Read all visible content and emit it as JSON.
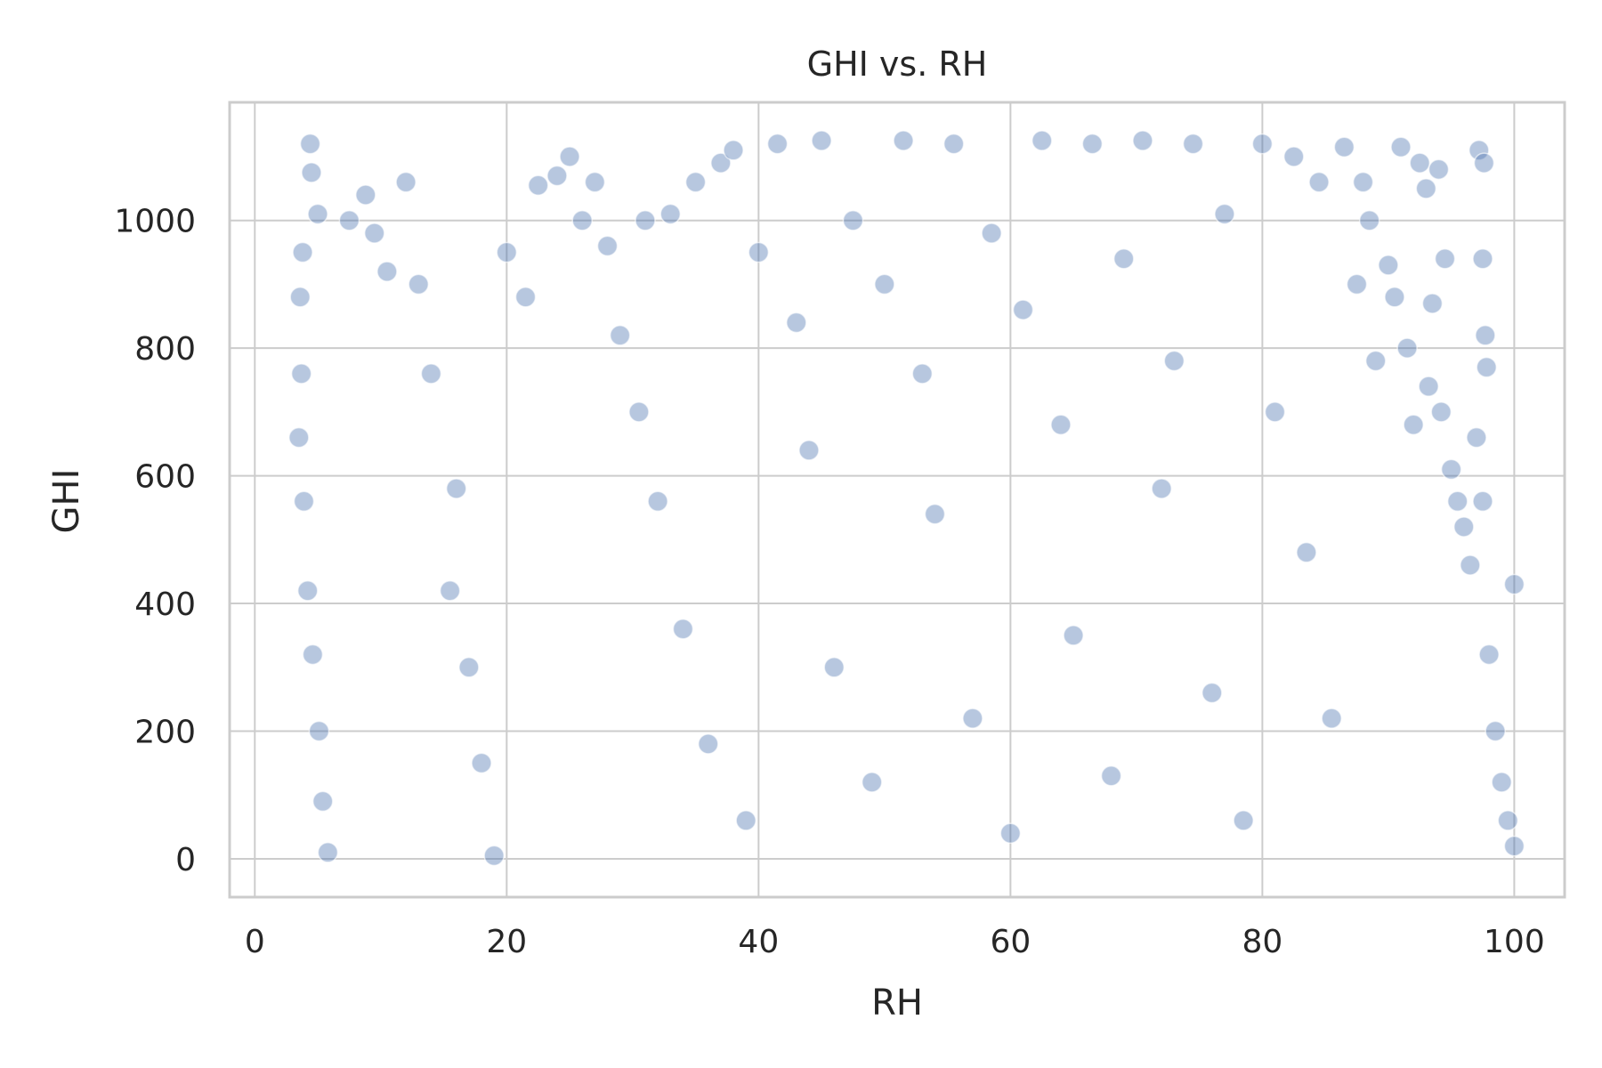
{
  "chart_data": {
    "type": "scatter",
    "title": "GHI vs. RH",
    "xlabel": "RH",
    "ylabel": "GHI",
    "xlim": [
      -2,
      104
    ],
    "ylim": [
      -60,
      1185
    ],
    "x_ticks": [
      0,
      20,
      40,
      60,
      80,
      100
    ],
    "y_ticks": [
      0,
      200,
      400,
      600,
      800,
      1000
    ],
    "grid": true,
    "marker_color": "#4c72b0",
    "marker_alpha": 0.4,
    "marker_edge_color": "#ffffff",
    "points": [
      {
        "x": 4.4,
        "y": 1120
      },
      {
        "x": 4.5,
        "y": 1075
      },
      {
        "x": 5.0,
        "y": 1010
      },
      {
        "x": 3.8,
        "y": 950
      },
      {
        "x": 3.6,
        "y": 880
      },
      {
        "x": 3.7,
        "y": 760
      },
      {
        "x": 3.5,
        "y": 660
      },
      {
        "x": 3.9,
        "y": 560
      },
      {
        "x": 4.2,
        "y": 420
      },
      {
        "x": 4.6,
        "y": 320
      },
      {
        "x": 5.1,
        "y": 200
      },
      {
        "x": 5.4,
        "y": 90
      },
      {
        "x": 5.8,
        "y": 10
      },
      {
        "x": 7.5,
        "y": 1000
      },
      {
        "x": 8.8,
        "y": 1040
      },
      {
        "x": 9.5,
        "y": 980
      },
      {
        "x": 10.5,
        "y": 920
      },
      {
        "x": 12.0,
        "y": 1060
      },
      {
        "x": 13.0,
        "y": 900
      },
      {
        "x": 14.0,
        "y": 760
      },
      {
        "x": 15.5,
        "y": 420
      },
      {
        "x": 16.0,
        "y": 580
      },
      {
        "x": 17.0,
        "y": 300
      },
      {
        "x": 18.0,
        "y": 150
      },
      {
        "x": 19.0,
        "y": 5
      },
      {
        "x": 20.0,
        "y": 950
      },
      {
        "x": 21.5,
        "y": 880
      },
      {
        "x": 22.5,
        "y": 1055
      },
      {
        "x": 24.0,
        "y": 1070
      },
      {
        "x": 25.0,
        "y": 1100
      },
      {
        "x": 26.0,
        "y": 1000
      },
      {
        "x": 27.0,
        "y": 1060
      },
      {
        "x": 28.0,
        "y": 960
      },
      {
        "x": 29.0,
        "y": 820
      },
      {
        "x": 30.5,
        "y": 700
      },
      {
        "x": 31.0,
        "y": 1000
      },
      {
        "x": 32.0,
        "y": 560
      },
      {
        "x": 33.0,
        "y": 1010
      },
      {
        "x": 34.0,
        "y": 360
      },
      {
        "x": 35.0,
        "y": 1060
      },
      {
        "x": 36.0,
        "y": 180
      },
      {
        "x": 37.0,
        "y": 1090
      },
      {
        "x": 38.0,
        "y": 1110
      },
      {
        "x": 39.0,
        "y": 60
      },
      {
        "x": 40.0,
        "y": 950
      },
      {
        "x": 41.5,
        "y": 1120
      },
      {
        "x": 43.0,
        "y": 840
      },
      {
        "x": 44.0,
        "y": 640
      },
      {
        "x": 45.0,
        "y": 1125
      },
      {
        "x": 46.0,
        "y": 300
      },
      {
        "x": 47.5,
        "y": 1000
      },
      {
        "x": 49.0,
        "y": 120
      },
      {
        "x": 50.0,
        "y": 900
      },
      {
        "x": 51.5,
        "y": 1125
      },
      {
        "x": 53.0,
        "y": 760
      },
      {
        "x": 54.0,
        "y": 540
      },
      {
        "x": 55.5,
        "y": 1120
      },
      {
        "x": 57.0,
        "y": 220
      },
      {
        "x": 58.5,
        "y": 980
      },
      {
        "x": 60.0,
        "y": 40
      },
      {
        "x": 61.0,
        "y": 860
      },
      {
        "x": 62.5,
        "y": 1125
      },
      {
        "x": 64.0,
        "y": 680
      },
      {
        "x": 65.0,
        "y": 350
      },
      {
        "x": 66.5,
        "y": 1120
      },
      {
        "x": 68.0,
        "y": 130
      },
      {
        "x": 69.0,
        "y": 940
      },
      {
        "x": 70.5,
        "y": 1125
      },
      {
        "x": 72.0,
        "y": 580
      },
      {
        "x": 73.0,
        "y": 780
      },
      {
        "x": 74.5,
        "y": 1120
      },
      {
        "x": 76.0,
        "y": 260
      },
      {
        "x": 77.0,
        "y": 1010
      },
      {
        "x": 78.5,
        "y": 60
      },
      {
        "x": 80.0,
        "y": 1120
      },
      {
        "x": 81.0,
        "y": 700
      },
      {
        "x": 82.5,
        "y": 1100
      },
      {
        "x": 83.5,
        "y": 480
      },
      {
        "x": 84.5,
        "y": 1060
      },
      {
        "x": 85.5,
        "y": 220
      },
      {
        "x": 86.5,
        "y": 1115
      },
      {
        "x": 87.5,
        "y": 900
      },
      {
        "x": 88.0,
        "y": 1060
      },
      {
        "x": 88.5,
        "y": 1000
      },
      {
        "x": 89.0,
        "y": 780
      },
      {
        "x": 90.0,
        "y": 930
      },
      {
        "x": 90.5,
        "y": 880
      },
      {
        "x": 91.0,
        "y": 1115
      },
      {
        "x": 91.5,
        "y": 800
      },
      {
        "x": 92.0,
        "y": 680
      },
      {
        "x": 92.5,
        "y": 1090
      },
      {
        "x": 93.0,
        "y": 1050
      },
      {
        "x": 93.2,
        "y": 740
      },
      {
        "x": 93.5,
        "y": 870
      },
      {
        "x": 94.0,
        "y": 1080
      },
      {
        "x": 94.2,
        "y": 700
      },
      {
        "x": 94.5,
        "y": 940
      },
      {
        "x": 95.0,
        "y": 610
      },
      {
        "x": 95.5,
        "y": 560
      },
      {
        "x": 96.0,
        "y": 520
      },
      {
        "x": 96.5,
        "y": 460
      },
      {
        "x": 97.0,
        "y": 660
      },
      {
        "x": 97.2,
        "y": 1110
      },
      {
        "x": 97.5,
        "y": 940
      },
      {
        "x": 97.6,
        "y": 1090
      },
      {
        "x": 97.7,
        "y": 820
      },
      {
        "x": 97.8,
        "y": 770
      },
      {
        "x": 97.5,
        "y": 560
      },
      {
        "x": 98.0,
        "y": 320
      },
      {
        "x": 98.5,
        "y": 200
      },
      {
        "x": 99.0,
        "y": 120
      },
      {
        "x": 99.5,
        "y": 60
      },
      {
        "x": 100.0,
        "y": 20
      },
      {
        "x": 100.0,
        "y": 430
      }
    ]
  }
}
